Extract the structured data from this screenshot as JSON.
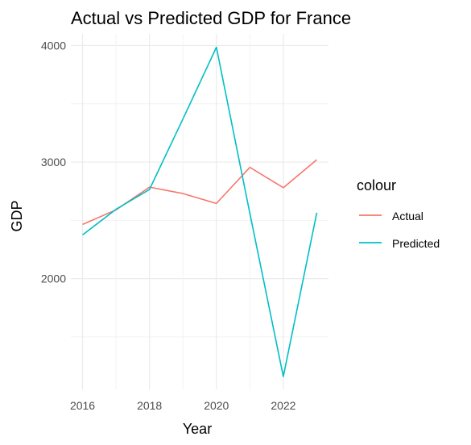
{
  "chart_data": {
    "type": "line",
    "title": "Actual vs Predicted GDP for France",
    "xlabel": "Year",
    "ylabel": "GDP",
    "x": [
      2016,
      2017,
      2018,
      2019,
      2020,
      2021,
      2022,
      2023
    ],
    "x_ticks": [
      "2016",
      "2018",
      "2020",
      "2022"
    ],
    "y_ticks": [
      "2000",
      "3000",
      "4000"
    ],
    "xlim": [
      2016,
      2023
    ],
    "ylim": [
      1050,
      4100
    ],
    "grid": true,
    "legend": {
      "title": "colour",
      "position": "right"
    },
    "series": [
      {
        "name": "Actual",
        "color": "#F8766D",
        "values": [
          2465,
          2590,
          2785,
          2730,
          2645,
          2955,
          2780,
          3020
        ]
      },
      {
        "name": "Predicted",
        "color": "#00BFC4",
        "values": [
          2375,
          2595,
          2765,
          3370,
          3985,
          2560,
          1160,
          2565
        ]
      }
    ]
  }
}
